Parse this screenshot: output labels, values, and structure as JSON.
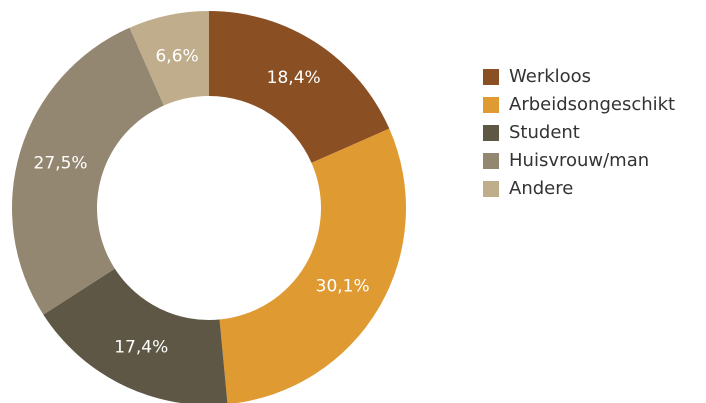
{
  "chart_data": {
    "type": "pie",
    "categories": [
      "Werkloos",
      "Arbeidsongeschikt",
      "Student",
      "Huisvrouw/man",
      "Andere"
    ],
    "values": [
      18.4,
      30.1,
      17.4,
      27.5,
      6.6
    ],
    "value_labels": [
      "18,4%",
      "30,1%",
      "17,4%",
      "27,5%",
      "6,6%"
    ],
    "colors": [
      "#8b4f24",
      "#e09a32",
      "#5f5745",
      "#938771",
      "#c0ad8c"
    ],
    "legend": "right"
  }
}
